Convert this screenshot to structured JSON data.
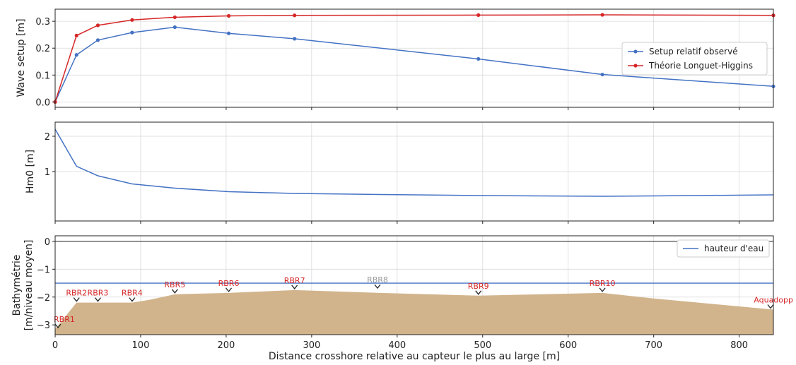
{
  "chart_data": [
    {
      "type": "line",
      "ylabel": "Wave setup [m]",
      "xlim": [
        0,
        840
      ],
      "ylim": [
        -0.02,
        0.345
      ],
      "yticks": [
        0.0,
        0.1,
        0.2,
        0.3
      ],
      "ytick_labels": [
        "0.0",
        "0.1",
        "0.2",
        "0.3"
      ],
      "grid": true,
      "legend_position": "center-right",
      "series": [
        {
          "name": "Setup relatif observé",
          "color": "#4472c4",
          "marker": true,
          "x": [
            0,
            25,
            50,
            90,
            140,
            203,
            280,
            495,
            640,
            840
          ],
          "y": [
            0.0,
            0.175,
            0.23,
            0.258,
            0.278,
            0.255,
            0.235,
            0.16,
            0.102,
            0.058
          ]
        },
        {
          "name": "Théorie Longuet-Higgins",
          "color": "#d62728",
          "marker": true,
          "x": [
            0,
            25,
            50,
            90,
            140,
            203,
            280,
            495,
            640,
            840
          ],
          "y": [
            0.0,
            0.247,
            0.285,
            0.305,
            0.315,
            0.32,
            0.322,
            0.323,
            0.324,
            0.322
          ]
        }
      ]
    },
    {
      "type": "line",
      "ylabel": "Hm0 [m]",
      "xlim": [
        0,
        840
      ],
      "ylim": [
        -0.4,
        2.4
      ],
      "yticks": [
        1,
        2
      ],
      "ytick_labels": [
        "1",
        "2"
      ],
      "grid": true,
      "series": [
        {
          "color": "#4472c4",
          "x": [
            0,
            25,
            50,
            90,
            140,
            203,
            280,
            380,
            495,
            640,
            700,
            840
          ],
          "y": [
            2.2,
            1.15,
            0.88,
            0.65,
            0.53,
            0.43,
            0.38,
            0.35,
            0.32,
            0.3,
            0.31,
            0.34
          ]
        }
      ]
    },
    {
      "type": "area",
      "ylabel": "Bathymétrie\n[m/niveau moyen]",
      "xlabel": "Distance crosshore relative au capteur le plus au large [m]",
      "xlim": [
        0,
        840
      ],
      "ylim": [
        -3.35,
        0.2
      ],
      "xticks": [
        0,
        100,
        200,
        300,
        400,
        500,
        600,
        700,
        800
      ],
      "xtick_labels": [
        "0",
        "100",
        "200",
        "300",
        "400",
        "500",
        "600",
        "700",
        "800"
      ],
      "yticks": [
        0,
        -1,
        -2,
        -3
      ],
      "ytick_labels": [
        "0",
        "−1",
        "−2",
        "−3"
      ],
      "grid": true,
      "legend_position": "top-right",
      "water_level": {
        "name": "hauteur d'eau",
        "color": "#4472c4",
        "y": -1.5
      },
      "seabed": {
        "color": "#d2b48c",
        "x": [
          0,
          25,
          50,
          90,
          110,
          140,
          203,
          280,
          380,
          495,
          640,
          700,
          840
        ],
        "y": [
          -3.15,
          -2.2,
          -2.2,
          -2.2,
          -2.1,
          -1.9,
          -1.85,
          -1.75,
          -1.85,
          -1.95,
          -1.85,
          -2.05,
          -2.45
        ]
      },
      "sensors": [
        {
          "label": "RBR1",
          "x": 0,
          "y": -3.15,
          "color": "#d62728"
        },
        {
          "label": "RBR2",
          "x": 25,
          "y": -2.2,
          "color": "#d62728"
        },
        {
          "label": "RBR3",
          "x": 50,
          "y": -2.2,
          "color": "#d62728"
        },
        {
          "label": "RBR4",
          "x": 90,
          "y": -2.2,
          "color": "#d62728"
        },
        {
          "label": "RBR5",
          "x": 140,
          "y": -1.9,
          "color": "#d62728"
        },
        {
          "label": "RBR6",
          "x": 203,
          "y": -1.85,
          "color": "#d62728"
        },
        {
          "label": "RBR7",
          "x": 280,
          "y": -1.75,
          "color": "#d62728"
        },
        {
          "label": "RBR8",
          "x": 377,
          "y": -1.73,
          "color": "#999999"
        },
        {
          "label": "RBR9",
          "x": 495,
          "y": -1.95,
          "color": "#d62728"
        },
        {
          "label": "RBR10",
          "x": 640,
          "y": -1.85,
          "color": "#d62728"
        },
        {
          "label": "Aquadopp",
          "x": 840,
          "y": -2.45,
          "color": "#d62728"
        }
      ]
    }
  ]
}
